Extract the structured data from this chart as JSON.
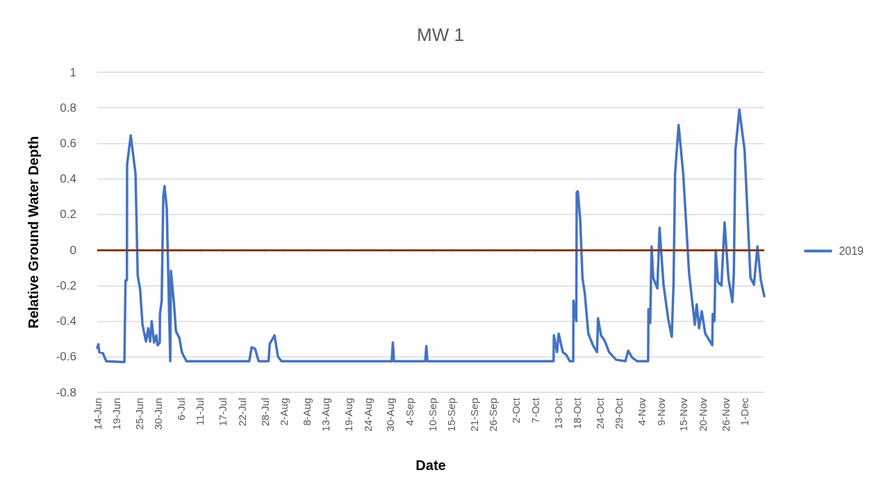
{
  "chart_data": {
    "type": "line",
    "title": "MW 1",
    "xlabel": "Date",
    "ylabel": "Relative Ground Water Depth",
    "x": [
      "2019-06-14",
      "2019-06-14T07:00",
      "2019-06-14T13:00",
      "2019-06-15T11:00",
      "2019-06-16T09:00",
      "2019-06-21T03:00",
      "2019-06-21T10:00",
      "2019-06-21T19:00",
      "2019-06-21T20:00",
      "2019-06-22T19:00",
      "2019-06-24T01:00",
      "2019-06-24T15:00",
      "2019-06-25T06:00",
      "2019-06-25T21:00",
      "2019-06-26T19:00",
      "2019-06-27T09:00",
      "2019-06-27T21:00",
      "2019-06-28T07:00",
      "2019-06-28T22:00",
      "2019-06-29T12:00",
      "2019-06-29T20:00",
      "2019-06-30T10:00",
      "2019-06-30T11:00",
      "2019-06-30T22:00",
      "2019-07-01T08:00",
      "2019-07-01T16:00",
      "2019-07-02T06:00",
      "2019-07-03T04:00",
      "2019-07-03T08:00",
      "2019-07-04T02:00",
      "2019-07-04T16:00",
      "2019-07-05T14:00",
      "2019-07-06T05:00",
      "2019-07-06T19:00",
      "2019-07-07T10:00",
      "2019-07-23T22:00",
      "2019-07-24T13:00",
      "2019-07-25T11:00",
      "2019-07-26T09:00",
      "2019-07-29T00:00",
      "2019-07-29T07:00",
      "2019-07-30T13:00",
      "2019-07-31T11:00",
      "2019-08-01T09:00",
      "2019-08-30T08:00",
      "2019-08-30T15:00",
      "2019-08-30T22:00",
      "2019-09-08T03:00",
      "2019-09-08T10:00",
      "2019-09-08T17:00",
      "2019-10-11T20:00",
      "2019-10-11T22:00",
      "2019-10-12T18:00",
      "2019-10-13T04:00",
      "2019-10-14T06:00",
      "2019-10-15T04:00",
      "2019-10-16T02:00",
      "2019-10-17T00:00",
      "2019-10-17T01:00",
      "2019-10-17T19:00",
      "2019-10-17T22:00",
      "2019-10-18T05:00",
      "2019-10-18T20:00",
      "2019-10-19T10:00",
      "2019-10-20T01:00",
      "2019-10-20T23:00",
      "2019-10-22T04:00",
      "2019-10-23T06:00",
      "2019-10-23T12:00",
      "2019-10-24T07:00",
      "2019-10-25T05:00",
      "2019-10-26T10:00",
      "2019-10-28T06:00",
      "2019-10-30T17:00",
      "2019-10-31T10:00",
      "2019-11-01T12:00",
      "2019-11-02T18:00",
      "2019-11-05T16:00",
      "2019-11-05T18:00",
      "2019-11-06T05:00",
      "2019-11-06T14:00",
      "2019-11-07T00:00",
      "2019-11-08T02:00",
      "2019-11-08T16:00",
      "2019-11-09T17:00",
      "2019-11-10T23:00",
      "2019-11-11T21:00",
      "2019-11-12T08:00",
      "2019-11-12T18:00",
      "2019-11-13T16:00",
      "2019-11-14T21:00",
      "2019-11-16T10:00",
      "2019-11-17T22:00",
      "2019-11-18T10:00",
      "2019-11-19T01:00",
      "2019-11-19T18:00",
      "2019-11-20T16:00",
      "2019-11-22T12:00",
      "2019-11-22T15:00",
      "2019-11-23T02:00",
      "2019-11-23T10:00",
      "2019-11-24T00:00",
      "2019-11-24T22:00",
      "2019-11-25T18:00",
      "2019-11-26T18:00",
      "2019-11-27T19:00",
      "2019-11-28T04:00",
      "2019-11-28T14:00",
      "2019-11-29T15:00",
      "2019-12-01T00:00",
      "2019-12-02T13:00",
      "2019-12-03T11:00",
      "2019-12-04T09:00",
      "2019-12-05T06:00",
      "2019-12-06T04:00"
    ],
    "series": [
      {
        "name": "2019",
        "color": "#4472c4",
        "values": [
          -0.55,
          -0.53,
          -0.575,
          -0.58,
          -0.625,
          -0.63,
          -0.17,
          -0.17,
          0.48,
          0.645,
          0.43,
          -0.145,
          -0.22,
          -0.42,
          -0.515,
          -0.44,
          -0.515,
          -0.4,
          -0.52,
          -0.48,
          -0.535,
          -0.52,
          -0.36,
          -0.285,
          0.3,
          0.36,
          0.235,
          -0.625,
          -0.117,
          -0.285,
          -0.457,
          -0.496,
          -0.574,
          -0.6,
          -0.625,
          -0.625,
          -0.547,
          -0.555,
          -0.625,
          -0.625,
          -0.527,
          -0.48,
          -0.6,
          -0.625,
          -0.625,
          -0.52,
          -0.625,
          -0.625,
          -0.54,
          -0.625,
          -0.625,
          -0.48,
          -0.574,
          -0.47,
          -0.574,
          -0.59,
          -0.625,
          -0.625,
          -0.285,
          -0.4,
          0.325,
          0.33,
          0.17,
          -0.156,
          -0.246,
          -0.47,
          -0.535,
          -0.574,
          -0.383,
          -0.48,
          -0.508,
          -0.574,
          -0.617,
          -0.625,
          -0.566,
          -0.605,
          -0.625,
          -0.625,
          -0.332,
          -0.41,
          0.02,
          -0.156,
          -0.215,
          0.125,
          -0.195,
          -0.39,
          -0.488,
          -0.195,
          0.43,
          0.703,
          0.43,
          -0.13,
          -0.42,
          -0.305,
          -0.44,
          -0.344,
          -0.47,
          -0.535,
          -0.36,
          -0.4,
          0,
          -0.18,
          -0.2,
          0.156,
          -0.156,
          -0.293,
          -0.137,
          0.56,
          0.79,
          0.56,
          -0.156,
          -0.195,
          0.02,
          -0.168,
          -0.26
        ]
      }
    ],
    "xlim": [
      "2019-06-14",
      "2019-12-06T04:00"
    ],
    "xticks": [
      {
        "value": "2019-06-14",
        "label": "14-Jun"
      },
      {
        "value": "2019-06-19",
        "label": "19-Jun"
      },
      {
        "value": "2019-06-25",
        "label": "25-Jun"
      },
      {
        "value": "2019-06-30",
        "label": "30-Jun"
      },
      {
        "value": "2019-07-06",
        "label": "6-Jul"
      },
      {
        "value": "2019-07-11",
        "label": "11-Jul"
      },
      {
        "value": "2019-07-17",
        "label": "17-Jul"
      },
      {
        "value": "2019-07-22",
        "label": "22-Jul"
      },
      {
        "value": "2019-07-28",
        "label": "28-Jul"
      },
      {
        "value": "2019-08-02",
        "label": "2-Aug"
      },
      {
        "value": "2019-08-08",
        "label": "8-Aug"
      },
      {
        "value": "2019-08-13",
        "label": "13-Aug"
      },
      {
        "value": "2019-08-19",
        "label": "19-Aug"
      },
      {
        "value": "2019-08-24",
        "label": "24-Aug"
      },
      {
        "value": "2019-08-30",
        "label": "30-Aug"
      },
      {
        "value": "2019-09-04",
        "label": "4-Sep"
      },
      {
        "value": "2019-09-10",
        "label": "10-Sep"
      },
      {
        "value": "2019-09-15",
        "label": "15-Sep"
      },
      {
        "value": "2019-09-21",
        "label": "21-Sep"
      },
      {
        "value": "2019-09-26",
        "label": "26-Sep"
      },
      {
        "value": "2019-10-02",
        "label": "2-Oct"
      },
      {
        "value": "2019-10-07",
        "label": "7-Oct"
      },
      {
        "value": "2019-10-13",
        "label": "13-Oct"
      },
      {
        "value": "2019-10-18",
        "label": "18-Oct"
      },
      {
        "value": "2019-10-24",
        "label": "24-Oct"
      },
      {
        "value": "2019-10-29",
        "label": "29-Oct"
      },
      {
        "value": "2019-11-04",
        "label": "4-Nov"
      },
      {
        "value": "2019-11-09",
        "label": "9-Nov"
      },
      {
        "value": "2019-11-15",
        "label": "15-Nov"
      },
      {
        "value": "2019-11-20",
        "label": "20-Nov"
      },
      {
        "value": "2019-11-26",
        "label": "26-Nov"
      },
      {
        "value": "2019-12-01",
        "label": "1-Dec"
      }
    ],
    "ylim": [
      -0.8,
      1
    ],
    "yticks": [
      -0.8,
      -0.6,
      -0.4,
      -0.2,
      0,
      0.2,
      0.4,
      0.6,
      0.8,
      1
    ],
    "ref_lines": [
      {
        "axis": "y",
        "value": 0,
        "color": "#843c0c"
      }
    ],
    "grid": "y",
    "legend": "right",
    "marker": "none",
    "line_style": "solid"
  }
}
